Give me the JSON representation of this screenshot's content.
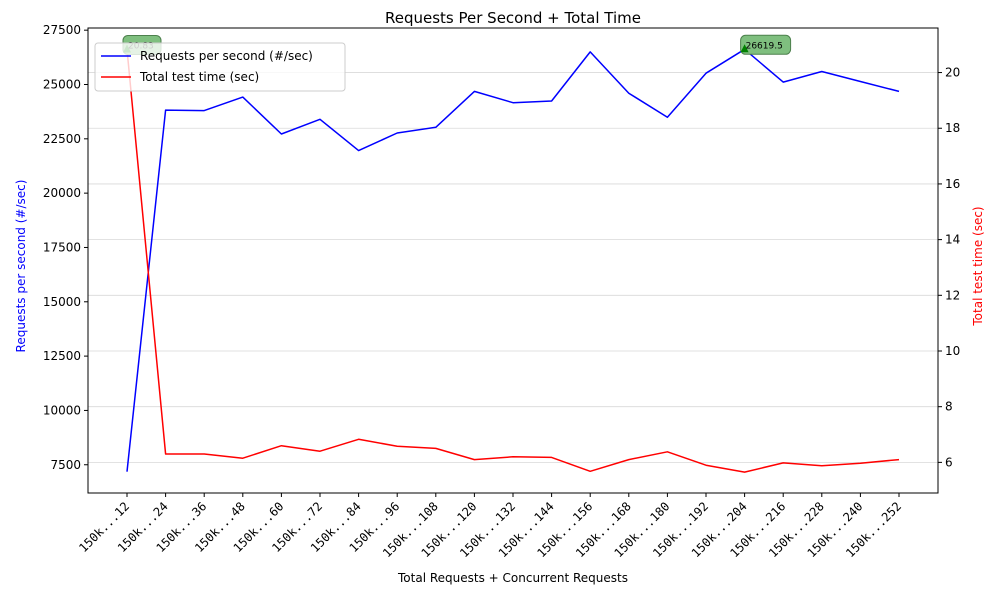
{
  "chart_data": {
    "type": "line",
    "title": "Requests Per Second + Total Time",
    "xlabel": "Total Requests + Concurrent Requests",
    "ylabel_left": "Requests per second (#/sec)",
    "ylabel_right": "Total test time (sec)",
    "categories": [
      "150k...12",
      "150k...24",
      "150k...36",
      "150k...48",
      "150k...60",
      "150k...72",
      "150k...84",
      "150k...96",
      "150k...108",
      "150k...120",
      "150k...132",
      "150k...144",
      "150k...156",
      "150k...168",
      "150k...180",
      "150k...192",
      "150k...204",
      "150k...216",
      "150k...228",
      "150k...240",
      "150k...252"
    ],
    "series": [
      {
        "name": "Requests per second (#/sec)",
        "color": "#0000ff",
        "axis": "left",
        "values": [
          7180,
          23820,
          23800,
          24420,
          22720,
          23400,
          21960,
          22770,
          23030,
          24680,
          24160,
          24240,
          26500,
          24600,
          23490,
          25520,
          26619.5,
          25110,
          25600,
          25140,
          24680
        ]
      },
      {
        "name": "Total test time (sec)",
        "color": "#ff0000",
        "axis": "right",
        "values": [
          20.83,
          6.3,
          6.3,
          6.15,
          6.6,
          6.4,
          6.83,
          6.58,
          6.5,
          6.1,
          6.2,
          6.18,
          5.68,
          6.1,
          6.38,
          5.9,
          5.65,
          5.98,
          5.88,
          5.97,
          6.1
        ]
      }
    ],
    "ylim_left": [
      6200,
      27600
    ],
    "ylim_right": [
      4.9,
      21.6
    ],
    "yticks_left": [
      7500,
      10000,
      12500,
      15000,
      17500,
      20000,
      22500,
      25000,
      27500
    ],
    "yticks_right": [
      6,
      8,
      10,
      12,
      14,
      16,
      18,
      20
    ],
    "grid": "horizontal",
    "legend_position": "top-left",
    "annotations": [
      {
        "text": "20.83",
        "series": 1,
        "index": 0,
        "marker_color": "#008000",
        "box_color": "#7fbf7f"
      },
      {
        "text": "26619.5",
        "series": 0,
        "index": 16,
        "marker_color": "#008000",
        "box_color": "#7fbf7f"
      }
    ]
  }
}
